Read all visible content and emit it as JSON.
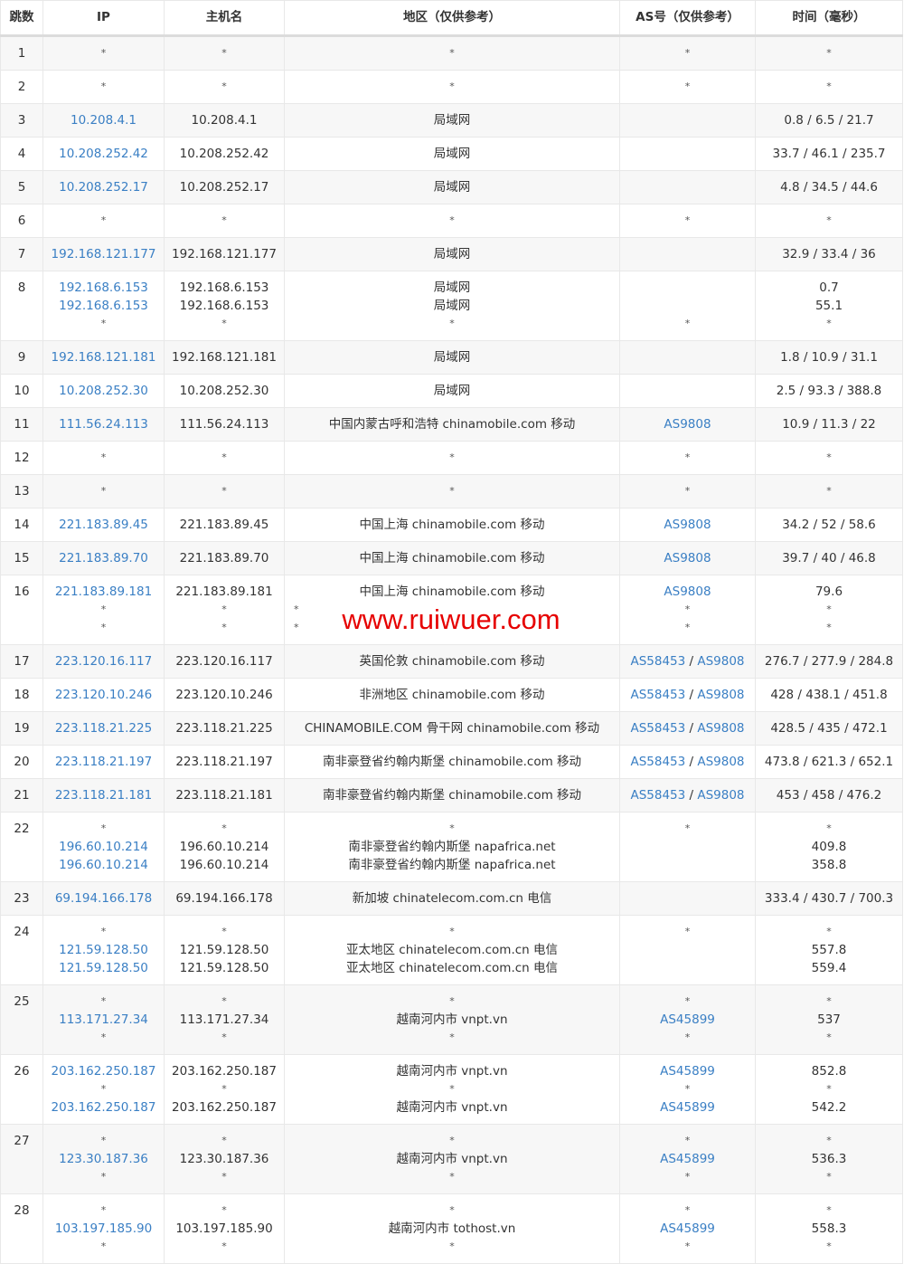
{
  "colors": {
    "link": "#3a7fc4",
    "watermark": "#e60000",
    "row_alt": "#f7f7f7"
  },
  "headers": [
    "跳数",
    "IP",
    "主机名",
    "地区（仅供参考）",
    "AS号（仅供参考）",
    "时间（毫秒）"
  ],
  "watermark": "www.ruiwuer.com",
  "rows": [
    {
      "hop": "1",
      "ip": [
        "*"
      ],
      "host": [
        "*"
      ],
      "region": [
        "*"
      ],
      "as": [
        "*"
      ],
      "time": [
        "*"
      ]
    },
    {
      "hop": "2",
      "ip": [
        "*"
      ],
      "host": [
        "*"
      ],
      "region": [
        "*"
      ],
      "as": [
        "*"
      ],
      "time": [
        "*"
      ]
    },
    {
      "hop": "3",
      "ip": [
        "10.208.4.1"
      ],
      "host": [
        "10.208.4.1"
      ],
      "region": [
        "局域网"
      ],
      "as": [
        ""
      ],
      "time": [
        "0.8 / 6.5 / 21.7"
      ]
    },
    {
      "hop": "4",
      "ip": [
        "10.208.252.42"
      ],
      "host": [
        "10.208.252.42"
      ],
      "region": [
        "局域网"
      ],
      "as": [
        ""
      ],
      "time": [
        "33.7 / 46.1 / 235.7"
      ]
    },
    {
      "hop": "5",
      "ip": [
        "10.208.252.17"
      ],
      "host": [
        "10.208.252.17"
      ],
      "region": [
        "局域网"
      ],
      "as": [
        ""
      ],
      "time": [
        "4.8 / 34.5 / 44.6"
      ]
    },
    {
      "hop": "6",
      "ip": [
        "*"
      ],
      "host": [
        "*"
      ],
      "region": [
        "*"
      ],
      "as": [
        "*"
      ],
      "time": [
        "*"
      ]
    },
    {
      "hop": "7",
      "ip": [
        "192.168.121.177"
      ],
      "host": [
        "192.168.121.177"
      ],
      "region": [
        "局域网"
      ],
      "as": [
        ""
      ],
      "time": [
        "32.9 / 33.4 / 36"
      ]
    },
    {
      "hop": "8",
      "ip": [
        "192.168.6.153",
        "192.168.6.153",
        "*"
      ],
      "host": [
        "192.168.6.153",
        "192.168.6.153",
        "*"
      ],
      "region": [
        "局域网",
        "局域网",
        "*"
      ],
      "as": [
        "",
        "",
        "*"
      ],
      "time": [
        "0.7",
        "55.1",
        "*"
      ]
    },
    {
      "hop": "9",
      "ip": [
        "192.168.121.181"
      ],
      "host": [
        "192.168.121.181"
      ],
      "region": [
        "局域网"
      ],
      "as": [
        ""
      ],
      "time": [
        "1.8 / 10.9 / 31.1"
      ]
    },
    {
      "hop": "10",
      "ip": [
        "10.208.252.30"
      ],
      "host": [
        "10.208.252.30"
      ],
      "region": [
        "局域网"
      ],
      "as": [
        ""
      ],
      "time": [
        "2.5 / 93.3 / 388.8"
      ]
    },
    {
      "hop": "11",
      "ip": [
        "111.56.24.113"
      ],
      "host": [
        "111.56.24.113"
      ],
      "region": [
        "中国内蒙古呼和浩特 chinamobile.com 移动"
      ],
      "as": [
        "AS9808"
      ],
      "time": [
        "10.9 / 11.3 / 22"
      ]
    },
    {
      "hop": "12",
      "ip": [
        "*"
      ],
      "host": [
        "*"
      ],
      "region": [
        "*"
      ],
      "as": [
        "*"
      ],
      "time": [
        "*"
      ]
    },
    {
      "hop": "13",
      "ip": [
        "*"
      ],
      "host": [
        "*"
      ],
      "region": [
        "*"
      ],
      "as": [
        "*"
      ],
      "time": [
        "*"
      ]
    },
    {
      "hop": "14",
      "ip": [
        "221.183.89.45"
      ],
      "host": [
        "221.183.89.45"
      ],
      "region": [
        "中国上海 chinamobile.com 移动"
      ],
      "as": [
        "AS9808"
      ],
      "time": [
        "34.2 / 52 / 58.6"
      ]
    },
    {
      "hop": "15",
      "ip": [
        "221.183.89.70"
      ],
      "host": [
        "221.183.89.70"
      ],
      "region": [
        "中国上海 chinamobile.com 移动"
      ],
      "as": [
        "AS9808"
      ],
      "time": [
        "39.7 / 40 / 46.8"
      ]
    },
    {
      "hop": "16",
      "ip": [
        "221.183.89.181",
        "*",
        "*"
      ],
      "host": [
        "221.183.89.181",
        "*",
        "*"
      ],
      "region": [
        "中国上海 chinamobile.com 移动",
        "*",
        "*"
      ],
      "as": [
        "AS9808",
        "*",
        "*"
      ],
      "time": [
        "79.6",
        "*",
        "*"
      ]
    },
    {
      "hop": "17",
      "ip": [
        "223.120.16.117"
      ],
      "host": [
        "223.120.16.117"
      ],
      "region": [
        "英国伦敦 chinamobile.com 移动"
      ],
      "as": [
        "AS58453 / AS9808"
      ],
      "time": [
        "276.7 / 277.9 / 284.8"
      ]
    },
    {
      "hop": "18",
      "ip": [
        "223.120.10.246"
      ],
      "host": [
        "223.120.10.246"
      ],
      "region": [
        "非洲地区 chinamobile.com 移动"
      ],
      "as": [
        "AS58453 / AS9808"
      ],
      "time": [
        "428 / 438.1 / 451.8"
      ]
    },
    {
      "hop": "19",
      "ip": [
        "223.118.21.225"
      ],
      "host": [
        "223.118.21.225"
      ],
      "region": [
        "CHINAMOBILE.COM 骨干网 chinamobile.com 移动"
      ],
      "as": [
        "AS58453 / AS9808"
      ],
      "time": [
        "428.5 / 435 / 472.1"
      ]
    },
    {
      "hop": "20",
      "ip": [
        "223.118.21.197"
      ],
      "host": [
        "223.118.21.197"
      ],
      "region": [
        "南非豪登省约翰内斯堡 chinamobile.com 移动"
      ],
      "as": [
        "AS58453 / AS9808"
      ],
      "time": [
        "473.8 / 621.3 / 652.1"
      ]
    },
    {
      "hop": "21",
      "ip": [
        "223.118.21.181"
      ],
      "host": [
        "223.118.21.181"
      ],
      "region": [
        "南非豪登省约翰内斯堡 chinamobile.com 移动"
      ],
      "as": [
        "AS58453 / AS9808"
      ],
      "time": [
        "453 / 458 / 476.2"
      ]
    },
    {
      "hop": "22",
      "ip": [
        "*",
        "196.60.10.214",
        "196.60.10.214"
      ],
      "host": [
        "*",
        "196.60.10.214",
        "196.60.10.214"
      ],
      "region": [
        "*",
        "南非豪登省约翰内斯堡 napafrica.net",
        "南非豪登省约翰内斯堡 napafrica.net"
      ],
      "as": [
        "*",
        "",
        ""
      ],
      "time": [
        "*",
        "409.8",
        "358.8"
      ]
    },
    {
      "hop": "23",
      "ip": [
        "69.194.166.178"
      ],
      "host": [
        "69.194.166.178"
      ],
      "region": [
        "新加坡 chinatelecom.com.cn 电信"
      ],
      "as": [
        ""
      ],
      "time": [
        "333.4 / 430.7 / 700.3"
      ]
    },
    {
      "hop": "24",
      "ip": [
        "*",
        "121.59.128.50",
        "121.59.128.50"
      ],
      "host": [
        "*",
        "121.59.128.50",
        "121.59.128.50"
      ],
      "region": [
        "*",
        "亚太地区 chinatelecom.com.cn 电信",
        "亚太地区 chinatelecom.com.cn 电信"
      ],
      "as": [
        "*",
        "",
        ""
      ],
      "time": [
        "*",
        "557.8",
        "559.4"
      ]
    },
    {
      "hop": "25",
      "ip": [
        "*",
        "113.171.27.34",
        "*"
      ],
      "host": [
        "*",
        "113.171.27.34",
        "*"
      ],
      "region": [
        "*",
        "越南河内市 vnpt.vn",
        "*"
      ],
      "as": [
        "*",
        "AS45899",
        "*"
      ],
      "time": [
        "*",
        "537",
        "*"
      ]
    },
    {
      "hop": "26",
      "ip": [
        "203.162.250.187",
        "*",
        "203.162.250.187"
      ],
      "host": [
        "203.162.250.187",
        "*",
        "203.162.250.187"
      ],
      "region": [
        "越南河内市 vnpt.vn",
        "*",
        "越南河内市 vnpt.vn"
      ],
      "as": [
        "AS45899",
        "*",
        "AS45899"
      ],
      "time": [
        "852.8",
        "*",
        "542.2"
      ]
    },
    {
      "hop": "27",
      "ip": [
        "*",
        "123.30.187.36",
        "*"
      ],
      "host": [
        "*",
        "123.30.187.36",
        "*"
      ],
      "region": [
        "*",
        "越南河内市 vnpt.vn",
        "*"
      ],
      "as": [
        "*",
        "AS45899",
        "*"
      ],
      "time": [
        "*",
        "536.3",
        "*"
      ]
    },
    {
      "hop": "28",
      "ip": [
        "*",
        "103.197.185.90",
        "*"
      ],
      "host": [
        "*",
        "103.197.185.90",
        "*"
      ],
      "region": [
        "*",
        "越南河内市 tothost.vn",
        "*"
      ],
      "as": [
        "*",
        "AS45899",
        "*"
      ],
      "time": [
        "*",
        "558.3",
        "*"
      ]
    }
  ]
}
